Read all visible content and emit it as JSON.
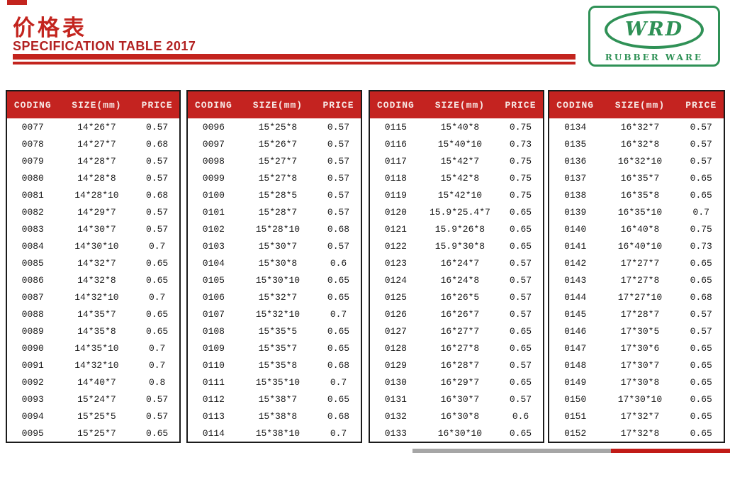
{
  "header": {
    "title": "价格表",
    "subtitle": "SPECIFICATION TABLE 2017"
  },
  "logo": {
    "text": "WRD",
    "subtext": "RUBBER WARE"
  },
  "columns": [
    "CODING",
    "SIZE(mm)",
    "PRICE"
  ],
  "colors": {
    "accent_red": "#c42320",
    "title_red": "#c3241e",
    "logo_green": "#2f9156",
    "bar_gray": "#a6a6a6",
    "bar_red": "#c11b17"
  },
  "tables": [
    {
      "rows": [
        [
          "0077",
          "14*26*7",
          "0.57"
        ],
        [
          "0078",
          "14*27*7",
          "0.68"
        ],
        [
          "0079",
          "14*28*7",
          "0.57"
        ],
        [
          "0080",
          "14*28*8",
          "0.57"
        ],
        [
          "0081",
          "14*28*10",
          "0.68"
        ],
        [
          "0082",
          "14*29*7",
          "0.57"
        ],
        [
          "0083",
          "14*30*7",
          "0.57"
        ],
        [
          "0084",
          "14*30*10",
          "0.7"
        ],
        [
          "0085",
          "14*32*7",
          "0.65"
        ],
        [
          "0086",
          "14*32*8",
          "0.65"
        ],
        [
          "0087",
          "14*32*10",
          "0.7"
        ],
        [
          "0088",
          "14*35*7",
          "0.65"
        ],
        [
          "0089",
          "14*35*8",
          "0.65"
        ],
        [
          "0090",
          "14*35*10",
          "0.7"
        ],
        [
          "0091",
          "14*32*10",
          "0.7"
        ],
        [
          "0092",
          "14*40*7",
          "0.8"
        ],
        [
          "0093",
          "15*24*7",
          "0.57"
        ],
        [
          "0094",
          "15*25*5",
          "0.57"
        ],
        [
          "0095",
          "15*25*7",
          "0.65"
        ]
      ]
    },
    {
      "rows": [
        [
          "0096",
          "15*25*8",
          "0.57"
        ],
        [
          "0097",
          "15*26*7",
          "0.57"
        ],
        [
          "0098",
          "15*27*7",
          "0.57"
        ],
        [
          "0099",
          "15*27*8",
          "0.57"
        ],
        [
          "0100",
          "15*28*5",
          "0.57"
        ],
        [
          "0101",
          "15*28*7",
          "0.57"
        ],
        [
          "0102",
          "15*28*10",
          "0.68"
        ],
        [
          "0103",
          "15*30*7",
          "0.57"
        ],
        [
          "0104",
          "15*30*8",
          "0.6"
        ],
        [
          "0105",
          "15*30*10",
          "0.65"
        ],
        [
          "0106",
          "15*32*7",
          "0.65"
        ],
        [
          "0107",
          "15*32*10",
          "0.7"
        ],
        [
          "0108",
          "15*35*5",
          "0.65"
        ],
        [
          "0109",
          "15*35*7",
          "0.65"
        ],
        [
          "0110",
          "15*35*8",
          "0.68"
        ],
        [
          "0111",
          "15*35*10",
          "0.7"
        ],
        [
          "0112",
          "15*38*7",
          "0.65"
        ],
        [
          "0113",
          "15*38*8",
          "0.68"
        ],
        [
          "0114",
          "15*38*10",
          "0.7"
        ]
      ]
    },
    {
      "rows": [
        [
          "0115",
          "15*40*8",
          "0.75"
        ],
        [
          "0116",
          "15*40*10",
          "0.73"
        ],
        [
          "0117",
          "15*42*7",
          "0.75"
        ],
        [
          "0118",
          "15*42*8",
          "0.75"
        ],
        [
          "0119",
          "15*42*10",
          "0.75"
        ],
        [
          "0120",
          "15.9*25.4*7",
          "0.65"
        ],
        [
          "0121",
          "15.9*26*8",
          "0.65"
        ],
        [
          "0122",
          "15.9*30*8",
          "0.65"
        ],
        [
          "0123",
          "16*24*7",
          "0.57"
        ],
        [
          "0124",
          "16*24*8",
          "0.57"
        ],
        [
          "0125",
          "16*26*5",
          "0.57"
        ],
        [
          "0126",
          "16*26*7",
          "0.57"
        ],
        [
          "0127",
          "16*27*7",
          "0.65"
        ],
        [
          "0128",
          "16*27*8",
          "0.65"
        ],
        [
          "0129",
          "16*28*7",
          "0.57"
        ],
        [
          "0130",
          "16*29*7",
          "0.65"
        ],
        [
          "0131",
          "16*30*7",
          "0.57"
        ],
        [
          "0132",
          "16*30*8",
          "0.6"
        ],
        [
          "0133",
          "16*30*10",
          "0.65"
        ]
      ]
    },
    {
      "rows": [
        [
          "0134",
          "16*32*7",
          "0.57"
        ],
        [
          "0135",
          "16*32*8",
          "0.57"
        ],
        [
          "0136",
          "16*32*10",
          "0.57"
        ],
        [
          "0137",
          "16*35*7",
          "0.65"
        ],
        [
          "0138",
          "16*35*8",
          "0.65"
        ],
        [
          "0139",
          "16*35*10",
          "0.7"
        ],
        [
          "0140",
          "16*40*8",
          "0.75"
        ],
        [
          "0141",
          "16*40*10",
          "0.73"
        ],
        [
          "0142",
          "17*27*7",
          "0.65"
        ],
        [
          "0143",
          "17*27*8",
          "0.65"
        ],
        [
          "0144",
          "17*27*10",
          "0.68"
        ],
        [
          "0145",
          "17*28*7",
          "0.57"
        ],
        [
          "0146",
          "17*30*5",
          "0.57"
        ],
        [
          "0147",
          "17*30*6",
          "0.65"
        ],
        [
          "0148",
          "17*30*7",
          "0.65"
        ],
        [
          "0149",
          "17*30*8",
          "0.65"
        ],
        [
          "0150",
          "17*30*10",
          "0.65"
        ],
        [
          "0151",
          "17*32*7",
          "0.65"
        ],
        [
          "0152",
          "17*32*8",
          "0.65"
        ]
      ]
    }
  ]
}
